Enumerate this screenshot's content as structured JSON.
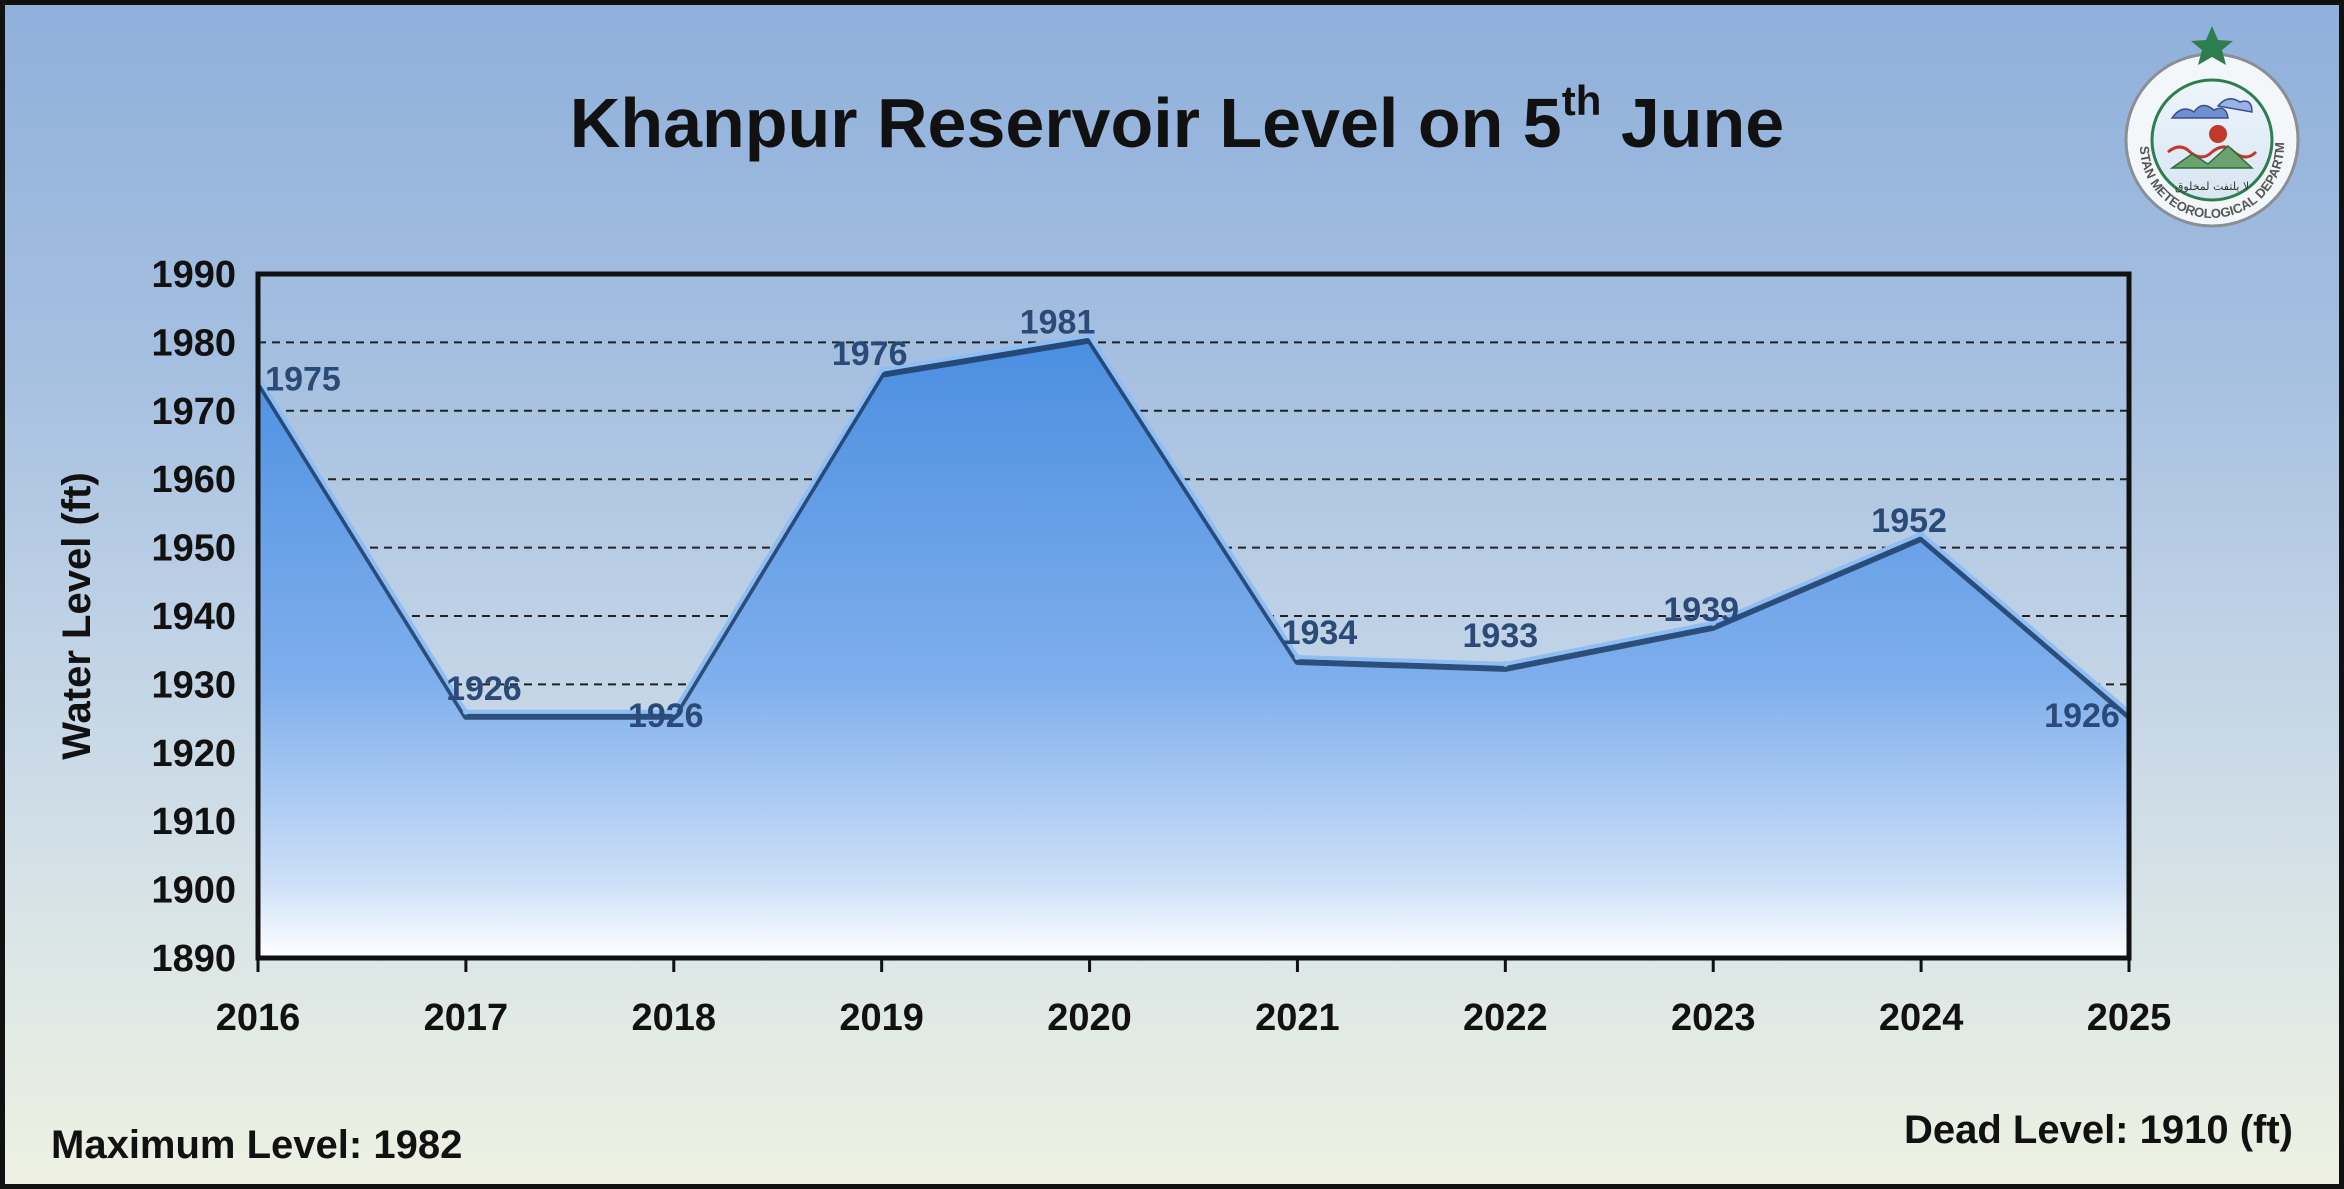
{
  "title": {
    "main": "Khanpur Reservoir Level on 5",
    "sup": "th",
    "tail": " June"
  },
  "footer": {
    "max_level": "Maximum Level: 1982",
    "dead_level": "Dead Level: 1910 (ft)"
  },
  "logo": {
    "name": "pakistan-meteorological-department-logo",
    "text": "PAKISTAN METEOROLOGICAL DEPARTMENT",
    "urdu": "لا يلتفت لمخلوق"
  },
  "colors": {
    "fill_top": "#4a8ee0",
    "fill_bottom": "#ffffff",
    "line": "#1d3d66",
    "label": "#2a4a78",
    "border": "#111111"
  },
  "chart_data": {
    "type": "area",
    "title": "Khanpur Reservoir Level on 5th June",
    "xlabel": "",
    "ylabel": "Water Level (ft)",
    "categories": [
      "2016",
      "2017",
      "2018",
      "2019",
      "2020",
      "2021",
      "2022",
      "2023",
      "2024",
      "2025"
    ],
    "values": [
      1975,
      1926,
      1926,
      1976,
      1981,
      1934,
      1933,
      1939,
      1952,
      1926
    ],
    "data_labels": [
      "1975",
      "1926",
      "1926",
      "1976",
      "1981",
      "1934",
      "1933",
      "1939",
      "1952",
      "1926"
    ],
    "ylim": [
      1890,
      1990
    ],
    "yticks": [
      "1890",
      "1900",
      "1910",
      "1920",
      "1930",
      "1940",
      "1950",
      "1960",
      "1970",
      "1980",
      "1990"
    ],
    "grid": "horizontal dashed",
    "legend": "none"
  }
}
